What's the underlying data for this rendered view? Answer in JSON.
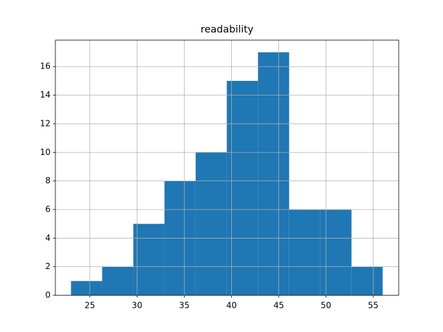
{
  "chart_data": {
    "type": "histogram",
    "title": "readability",
    "bins": [
      23,
      26.3,
      29.6,
      32.9,
      36.2,
      39.5,
      42.8,
      46.1,
      49.4,
      52.7,
      56
    ],
    "values": [
      1,
      2,
      5,
      8,
      10,
      15,
      17,
      6,
      6,
      2
    ],
    "color": "#1f77b4",
    "xlim": [
      21.35,
      57.7
    ],
    "xticks": [
      25,
      30,
      35,
      40,
      45,
      50,
      55
    ],
    "ylim": [
      0,
      17.85
    ],
    "yticks": [
      0,
      2,
      4,
      6,
      8,
      10,
      12,
      14,
      16
    ],
    "grid": true
  }
}
